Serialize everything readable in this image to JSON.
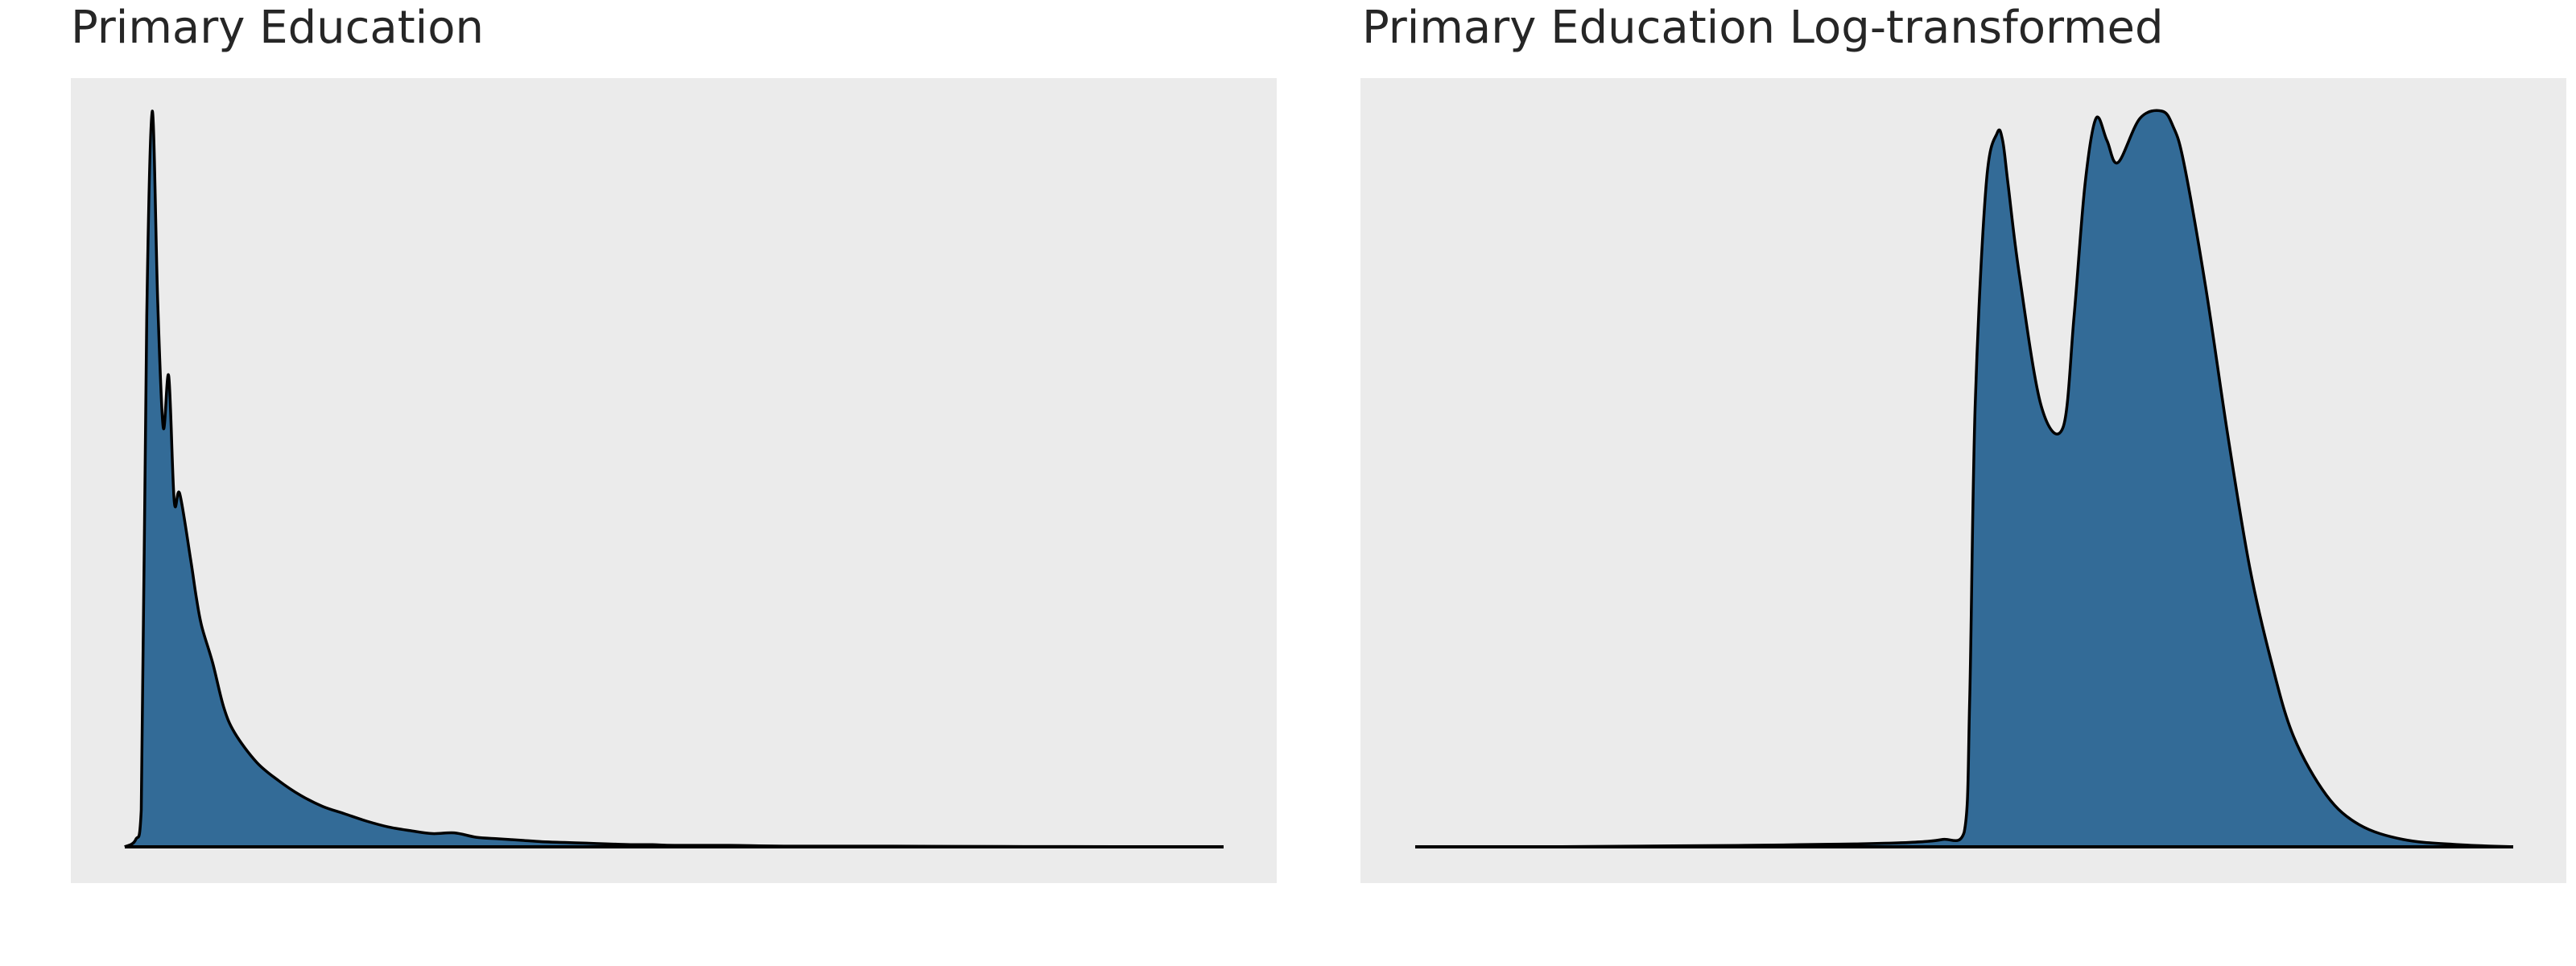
{
  "chart_data": [
    {
      "type": "area",
      "title": "Primary Education",
      "xlabel": "",
      "ylabel": "",
      "grid": false,
      "x": [
        0.0,
        0.01,
        0.015,
        0.02,
        0.025,
        0.03,
        0.035,
        0.04,
        0.045,
        0.05,
        0.06,
        0.065,
        0.07,
        0.08,
        0.09,
        0.1,
        0.12,
        0.14,
        0.16,
        0.18,
        0.2,
        0.22,
        0.24,
        0.26,
        0.28,
        0.3,
        0.32,
        0.34,
        0.36,
        0.38,
        0.4,
        0.42,
        0.44,
        0.46,
        0.48,
        0.5,
        0.55,
        0.6,
        0.7,
        0.8,
        0.9,
        1.0
      ],
      "y": [
        0.0,
        0.01,
        0.05,
        0.72,
        1.0,
        0.74,
        0.57,
        0.64,
        0.47,
        0.48,
        0.39,
        0.34,
        0.3,
        0.25,
        0.19,
        0.155,
        0.115,
        0.09,
        0.07,
        0.055,
        0.045,
        0.035,
        0.027,
        0.022,
        0.018,
        0.019,
        0.013,
        0.011,
        0.009,
        0.007,
        0.006,
        0.005,
        0.004,
        0.003,
        0.003,
        0.002,
        0.002,
        0.001,
        0.001,
        0.0005,
        0.0003,
        0.0
      ]
    },
    {
      "type": "area",
      "title": "Primary Education Log-transformed",
      "xlabel": "",
      "ylabel": "",
      "grid": false,
      "x": [
        0.0,
        0.1,
        0.2,
        0.3,
        0.35,
        0.4,
        0.45,
        0.48,
        0.5,
        0.505,
        0.51,
        0.52,
        0.53,
        0.535,
        0.54,
        0.55,
        0.57,
        0.59,
        0.6,
        0.61,
        0.62,
        0.63,
        0.64,
        0.66,
        0.68,
        0.69,
        0.7,
        0.72,
        0.74,
        0.76,
        0.78,
        0.8,
        0.83,
        0.86,
        0.9,
        0.95,
        1.0
      ],
      "y": [
        0.0,
        0.0,
        0.001,
        0.002,
        0.003,
        0.004,
        0.006,
        0.01,
        0.02,
        0.2,
        0.6,
        0.9,
        0.97,
        0.96,
        0.9,
        0.78,
        0.6,
        0.57,
        0.72,
        0.9,
        0.99,
        0.96,
        0.93,
        0.99,
        1.0,
        0.98,
        0.93,
        0.76,
        0.56,
        0.38,
        0.25,
        0.15,
        0.07,
        0.03,
        0.01,
        0.003,
        0.0
      ]
    }
  ],
  "colors": {
    "fill": "#336b97",
    "outline": "#000000",
    "panel_background": "#ebebeb",
    "page_background": "#ffffff",
    "title": "#262626"
  }
}
